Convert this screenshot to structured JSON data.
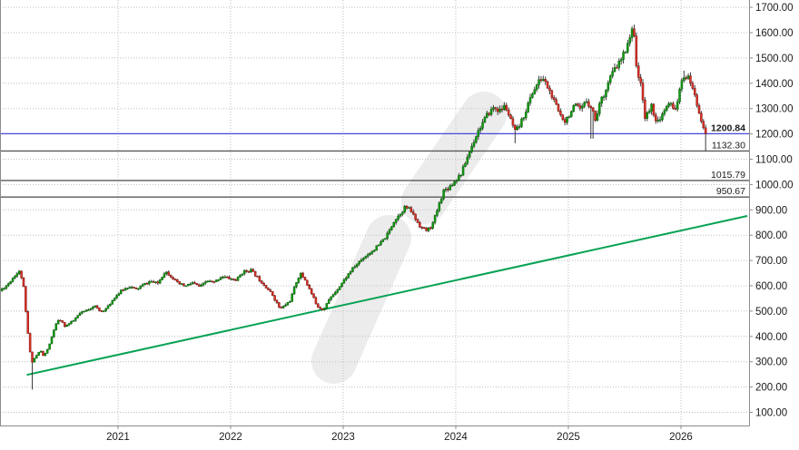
{
  "chart_data": {
    "type": "candlestick",
    "title": "",
    "xlabel": "",
    "ylabel": "",
    "timeframe": "weekly",
    "xlim": [
      2019.952,
      2026.605
    ],
    "ylim": [
      48,
      1729
    ],
    "grid": true,
    "x_ticks": [
      "2021",
      "2022",
      "2023",
      "2024",
      "2025",
      "2026"
    ],
    "y_ticks": [
      100,
      200,
      300,
      400,
      500,
      600,
      700,
      800,
      900,
      1000,
      1100,
      1200,
      1300,
      1400,
      1500,
      1600,
      1700
    ],
    "y_tick_decimals": 2,
    "last_price_label": "1200.84",
    "hlines": [
      {
        "value": 1200.84,
        "label": "1200.84",
        "color": "#4747db",
        "bold": true,
        "role": "last-price"
      },
      {
        "value": 1132.3,
        "label": "1132.30",
        "color": "#5a5a5a",
        "bold": false,
        "role": "support"
      },
      {
        "value": 1015.79,
        "label": "1015.79",
        "color": "#5a5a5a",
        "bold": false,
        "role": "support"
      },
      {
        "value": 950.67,
        "label": "950.67",
        "color": "#5a5a5a",
        "bold": false,
        "role": "support"
      }
    ],
    "trendline": {
      "x1": 2020.19,
      "y1": 248,
      "x2": 2026.59,
      "y2": 876,
      "color": "#06a254"
    },
    "series": [
      {
        "name": "price",
        "price_path": [
          [
            2019.95,
            580
          ],
          [
            2020.02,
            605
          ],
          [
            2020.08,
            640
          ],
          [
            2020.13,
            658
          ],
          [
            2020.16,
            600
          ],
          [
            2020.19,
            450
          ],
          [
            2020.23,
            295
          ],
          [
            2020.26,
            315
          ],
          [
            2020.31,
            345
          ],
          [
            2020.34,
            320
          ],
          [
            2020.39,
            365
          ],
          [
            2020.44,
            440
          ],
          [
            2020.48,
            468
          ],
          [
            2020.53,
            440
          ],
          [
            2020.6,
            460
          ],
          [
            2020.66,
            490
          ],
          [
            2020.73,
            505
          ],
          [
            2020.79,
            522
          ],
          [
            2020.84,
            498
          ],
          [
            2020.9,
            510
          ],
          [
            2020.97,
            555
          ],
          [
            2021.03,
            580
          ],
          [
            2021.1,
            598
          ],
          [
            2021.16,
            585
          ],
          [
            2021.23,
            605
          ],
          [
            2021.29,
            618
          ],
          [
            2021.35,
            608
          ],
          [
            2021.42,
            658
          ],
          [
            2021.47,
            638
          ],
          [
            2021.53,
            610
          ],
          [
            2021.6,
            598
          ],
          [
            2021.66,
            612
          ],
          [
            2021.73,
            595
          ],
          [
            2021.79,
            620
          ],
          [
            2021.85,
            612
          ],
          [
            2021.92,
            638
          ],
          [
            2021.98,
            630
          ],
          [
            2022.05,
            622
          ],
          [
            2022.11,
            655
          ],
          [
            2022.18,
            662
          ],
          [
            2022.24,
            632
          ],
          [
            2022.31,
            598
          ],
          [
            2022.37,
            565
          ],
          [
            2022.44,
            508
          ],
          [
            2022.48,
            522
          ],
          [
            2022.53,
            542
          ],
          [
            2022.58,
            612
          ],
          [
            2022.62,
            648
          ],
          [
            2022.66,
            625
          ],
          [
            2022.73,
            558
          ],
          [
            2022.77,
            520
          ],
          [
            2022.82,
            505
          ],
          [
            2022.87,
            542
          ],
          [
            2022.94,
            582
          ],
          [
            2023.0,
            618
          ],
          [
            2023.06,
            655
          ],
          [
            2023.13,
            690
          ],
          [
            2023.19,
            715
          ],
          [
            2023.26,
            738
          ],
          [
            2023.32,
            762
          ],
          [
            2023.39,
            800
          ],
          [
            2023.45,
            855
          ],
          [
            2023.5,
            882
          ],
          [
            2023.55,
            912
          ],
          [
            2023.6,
            898
          ],
          [
            2023.65,
            858
          ],
          [
            2023.69,
            832
          ],
          [
            2023.74,
            818
          ],
          [
            2023.79,
            838
          ],
          [
            2023.84,
            905
          ],
          [
            2023.89,
            975
          ],
          [
            2023.94,
            990
          ],
          [
            2023.98,
            1008
          ],
          [
            2024.05,
            1045
          ],
          [
            2024.1,
            1105
          ],
          [
            2024.15,
            1160
          ],
          [
            2024.19,
            1205
          ],
          [
            2024.24,
            1245
          ],
          [
            2024.29,
            1282
          ],
          [
            2024.34,
            1305
          ],
          [
            2024.39,
            1290
          ],
          [
            2024.44,
            1312
          ],
          [
            2024.48,
            1262
          ],
          [
            2024.53,
            1205
          ],
          [
            2024.58,
            1245
          ],
          [
            2024.63,
            1302
          ],
          [
            2024.68,
            1362
          ],
          [
            2024.73,
            1402
          ],
          [
            2024.77,
            1422
          ],
          [
            2024.82,
            1382
          ],
          [
            2024.87,
            1330
          ],
          [
            2024.92,
            1282
          ],
          [
            2024.97,
            1252
          ],
          [
            2025.02,
            1285
          ],
          [
            2025.06,
            1312
          ],
          [
            2025.11,
            1292
          ],
          [
            2025.16,
            1332
          ],
          [
            2025.21,
            1302
          ],
          [
            2025.24,
            1252
          ],
          [
            2025.27,
            1312
          ],
          [
            2025.32,
            1362
          ],
          [
            2025.37,
            1422
          ],
          [
            2025.42,
            1462
          ],
          [
            2025.47,
            1492
          ],
          [
            2025.5,
            1525
          ],
          [
            2025.53,
            1565
          ],
          [
            2025.56,
            1605
          ],
          [
            2025.59,
            1598
          ],
          [
            2025.61,
            1420
          ],
          [
            2025.65,
            1395
          ],
          [
            2025.68,
            1262
          ],
          [
            2025.71,
            1285
          ],
          [
            2025.74,
            1312
          ],
          [
            2025.77,
            1262
          ],
          [
            2025.81,
            1242
          ],
          [
            2025.84,
            1282
          ],
          [
            2025.87,
            1302
          ],
          [
            2025.9,
            1322
          ],
          [
            2025.94,
            1292
          ],
          [
            2025.97,
            1332
          ],
          [
            2026.0,
            1392
          ],
          [
            2026.03,
            1432
          ],
          [
            2026.06,
            1422
          ],
          [
            2026.1,
            1392
          ],
          [
            2026.13,
            1332
          ],
          [
            2026.16,
            1292
          ],
          [
            2026.19,
            1242
          ],
          [
            2026.22,
            1200.84
          ]
        ],
        "spikes": [
          {
            "x": 2020.23,
            "low": 190
          },
          {
            "x": 2024.53,
            "low": 1163
          },
          {
            "x": 2025.21,
            "low": 1181
          },
          {
            "x": 2025.56,
            "high": 1617
          },
          {
            "x": 2026.03,
            "high": 1450
          },
          {
            "x": 2026.22,
            "low": 1132.5
          }
        ],
        "last_close": 1200.84
      }
    ],
    "colors": {
      "up_fill": "#109a10",
      "up_stroke": "#056305",
      "down_fill": "#e03127",
      "down_stroke": "#7c140f",
      "wick": "#3c3c3c",
      "grid": "#bfbfbf",
      "axis": "#8c8c8c",
      "tick_text": "#1a1a1a",
      "hline_label": "#1a1a1a",
      "watermark": "#ececec",
      "background": "#ffffff"
    },
    "legend": null
  }
}
